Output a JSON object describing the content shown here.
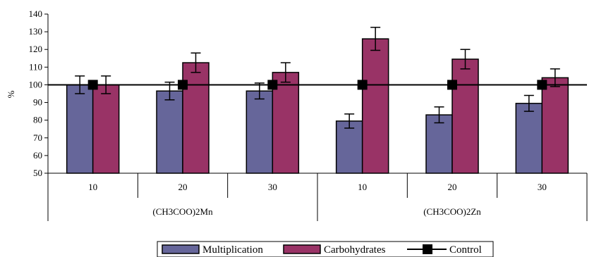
{
  "chart_data": {
    "type": "bar",
    "title": "",
    "ylabel": "%",
    "xlabel": "",
    "ylim": [
      50,
      140
    ],
    "yticks": [
      50,
      60,
      70,
      80,
      90,
      100,
      110,
      120,
      130,
      140
    ],
    "categories": [
      "10",
      "20",
      "30",
      "10",
      "20",
      "30"
    ],
    "groups": [
      {
        "label": "(CH3COO)2Mn",
        "categories": [
          "10",
          "20",
          "30"
        ]
      },
      {
        "label": "(CH3COO)2Zn",
        "categories": [
          "10",
          "20",
          "30"
        ]
      }
    ],
    "series": [
      {
        "name": "Multiplication",
        "kind": "bar",
        "color": "#66669a",
        "values": [
          100,
          96.5,
          96.5,
          79.5,
          83,
          89.5
        ],
        "errors": [
          5,
          5,
          4.5,
          4,
          4.5,
          4.5
        ]
      },
      {
        "name": "Carbohydrates",
        "kind": "bar",
        "color": "#993366",
        "values": [
          100,
          112.5,
          107,
          126,
          114.5,
          104
        ],
        "errors": [
          5,
          5.5,
          5.5,
          6.5,
          5.5,
          5
        ]
      },
      {
        "name": "Control",
        "kind": "line",
        "color": "#000000",
        "values": [
          100,
          100,
          100,
          100,
          100,
          100
        ]
      }
    ],
    "grid": false,
    "legend_position": "bottom"
  }
}
